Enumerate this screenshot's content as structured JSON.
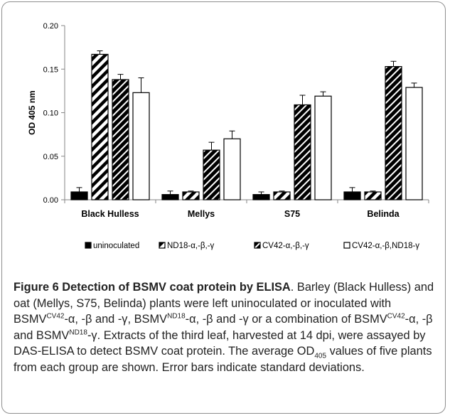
{
  "chart_data": {
    "type": "bar",
    "title": "",
    "xlabel": "",
    "ylabel": "OD 405 nm",
    "ylim": [
      0,
      0.2
    ],
    "yticks": [
      "0.00",
      "0.05",
      "0.10",
      "0.15",
      "0.20"
    ],
    "grid": false,
    "legend_position": "bottom",
    "categories": [
      "Black Hulless",
      "Mellys",
      "S75",
      "Belinda"
    ],
    "series": [
      {
        "name": "uninoculated",
        "pattern": "solid-black",
        "values": [
          0.009,
          0.006,
          0.006,
          0.009
        ],
        "errors": [
          0.005,
          0.004,
          0.003,
          0.005
        ]
      },
      {
        "name": "ND18-α,-β,-γ",
        "pattern": "hatch-light",
        "values": [
          0.167,
          0.009,
          0.009,
          0.009
        ],
        "errors": [
          0.004,
          0.001,
          0.001,
          0.001
        ]
      },
      {
        "name": "CV42-α,-β,-γ",
        "pattern": "hatch-dense",
        "values": [
          0.138,
          0.057,
          0.109,
          0.153
        ],
        "errors": [
          0.006,
          0.009,
          0.011,
          0.006
        ]
      },
      {
        "name": "CV42-α,-β,ND18-γ",
        "pattern": "open-white",
        "values": [
          0.123,
          0.07,
          0.119,
          0.129
        ],
        "errors": [
          0.017,
          0.009,
          0.005,
          0.005
        ]
      }
    ]
  },
  "caption": {
    "title": "Figure 6 Detection of BSMV coat protein by ELISA",
    "p1": ". Barley (Black Hulless) and oat (Mellys, S75, Belinda) plants were left uninoculated or inoculated with BSMV",
    "sup1": "CV42",
    "p2": "-α, -β and -γ, BSMV",
    "sup2": "ND18",
    "p3": "-α, -β and -γ or a combination of BSMV",
    "sup3": "CV42",
    "p4": "-α, -β and BSMV",
    "sup4": "ND18",
    "p5": "-γ. Extracts of the third leaf, harvested at 14 dpi, were assayed by DAS-ELISA to detect BSMV coat protein. The average OD",
    "sub1": "405",
    "p6": " values of five plants from each group are shown. Error bars indicate standard deviations."
  }
}
